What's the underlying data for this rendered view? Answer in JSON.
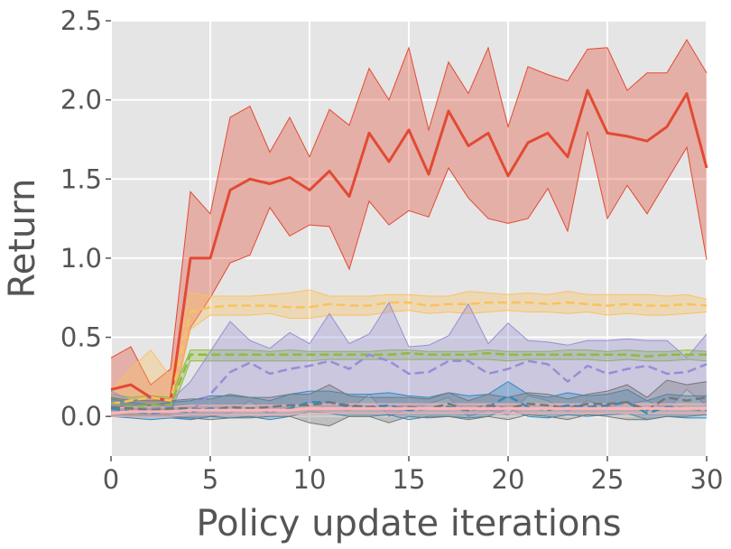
{
  "chart_data": {
    "type": "line",
    "title": "",
    "xlabel": "Policy update iterations",
    "ylabel": "Return",
    "xlim": [
      0,
      30
    ],
    "ylim": [
      -0.25,
      2.5
    ],
    "grid": true,
    "background": "#e5e5e5",
    "x": [
      0,
      1,
      2,
      3,
      4,
      5,
      6,
      7,
      8,
      9,
      10,
      11,
      12,
      13,
      14,
      15,
      16,
      17,
      18,
      19,
      20,
      21,
      22,
      23,
      24,
      25,
      26,
      27,
      28,
      29,
      30
    ],
    "xticks": [
      0,
      5,
      10,
      15,
      20,
      25,
      30
    ],
    "xtick_labels": [
      "0",
      "5",
      "10",
      "15",
      "20",
      "25",
      "30"
    ],
    "yticks": [
      0.0,
      0.5,
      1.0,
      1.5,
      2.0,
      2.5
    ],
    "ytick_labels": [
      "0.0",
      "0.5",
      "1.0",
      "1.5",
      "2.0",
      "2.5"
    ],
    "series": [
      {
        "color": "#e24a33",
        "dash": "solid",
        "width": 3,
        "mean": [
          0.17,
          0.2,
          0.12,
          0.1,
          1.0,
          1.0,
          1.43,
          1.5,
          1.47,
          1.51,
          1.43,
          1.55,
          1.39,
          1.79,
          1.61,
          1.81,
          1.53,
          1.93,
          1.71,
          1.79,
          1.52,
          1.73,
          1.79,
          1.64,
          2.06,
          1.79,
          1.77,
          1.74,
          1.83,
          2.04,
          1.57
        ],
        "upper": [
          0.37,
          0.44,
          0.2,
          0.3,
          1.42,
          1.28,
          1.89,
          1.96,
          1.67,
          1.89,
          1.64,
          1.94,
          1.84,
          2.2,
          2.0,
          2.33,
          1.81,
          2.24,
          2.04,
          2.33,
          1.83,
          2.21,
          2.16,
          2.12,
          2.32,
          2.33,
          2.06,
          2.17,
          2.17,
          2.38,
          2.17
        ],
        "lower": [
          0.0,
          0.0,
          0.0,
          0.0,
          0.56,
          0.75,
          0.97,
          1.02,
          1.32,
          1.14,
          1.21,
          1.2,
          0.93,
          1.36,
          1.21,
          1.3,
          1.26,
          1.57,
          1.38,
          1.25,
          1.22,
          1.25,
          1.44,
          1.17,
          1.8,
          1.25,
          1.46,
          1.28,
          1.49,
          1.7,
          0.99
        ]
      },
      {
        "color": "#fbc15e",
        "dash": "dashed",
        "width": 2.5,
        "mean": [
          0.08,
          0.1,
          0.12,
          0.1,
          0.66,
          0.69,
          0.7,
          0.7,
          0.7,
          0.69,
          0.69,
          0.71,
          0.7,
          0.7,
          0.72,
          0.72,
          0.7,
          0.71,
          0.71,
          0.72,
          0.72,
          0.72,
          0.71,
          0.72,
          0.71,
          0.7,
          0.71,
          0.7,
          0.7,
          0.71,
          0.7
        ],
        "upper": [
          0.16,
          0.3,
          0.42,
          0.25,
          0.78,
          0.76,
          0.76,
          0.76,
          0.77,
          0.78,
          0.8,
          0.76,
          0.76,
          0.76,
          0.77,
          0.77,
          0.76,
          0.76,
          0.79,
          0.78,
          0.77,
          0.78,
          0.77,
          0.79,
          0.77,
          0.77,
          0.77,
          0.77,
          0.76,
          0.77,
          0.74
        ],
        "lower": [
          0.0,
          0.0,
          0.0,
          0.0,
          0.55,
          0.64,
          0.64,
          0.64,
          0.65,
          0.62,
          0.62,
          0.64,
          0.64,
          0.64,
          0.66,
          0.67,
          0.65,
          0.66,
          0.65,
          0.66,
          0.67,
          0.66,
          0.66,
          0.65,
          0.66,
          0.64,
          0.65,
          0.64,
          0.64,
          0.65,
          0.66
        ]
      },
      {
        "color": "#8eba42",
        "dash": "dashed",
        "width": 2.5,
        "mean": [
          0.08,
          0.06,
          0.07,
          0.07,
          0.39,
          0.39,
          0.39,
          0.39,
          0.39,
          0.39,
          0.39,
          0.39,
          0.39,
          0.39,
          0.39,
          0.4,
          0.39,
          0.39,
          0.39,
          0.4,
          0.39,
          0.39,
          0.39,
          0.39,
          0.39,
          0.39,
          0.39,
          0.38,
          0.39,
          0.39,
          0.39
        ],
        "upper": [
          0.14,
          0.12,
          0.13,
          0.12,
          0.42,
          0.42,
          0.42,
          0.42,
          0.41,
          0.42,
          0.41,
          0.41,
          0.41,
          0.41,
          0.42,
          0.42,
          0.41,
          0.41,
          0.41,
          0.42,
          0.41,
          0.41,
          0.41,
          0.42,
          0.42,
          0.41,
          0.42,
          0.41,
          0.41,
          0.42,
          0.41
        ],
        "lower": [
          0.02,
          0.01,
          0.02,
          0.02,
          0.35,
          0.35,
          0.35,
          0.35,
          0.35,
          0.35,
          0.35,
          0.36,
          0.36,
          0.36,
          0.36,
          0.36,
          0.36,
          0.36,
          0.36,
          0.36,
          0.35,
          0.36,
          0.36,
          0.36,
          0.36,
          0.35,
          0.36,
          0.35,
          0.35,
          0.36,
          0.35
        ]
      },
      {
        "color": "#988ed5",
        "dash": "dashed",
        "width": 2.5,
        "mean": [
          0.07,
          0.05,
          0.05,
          0.06,
          0.03,
          0.14,
          0.28,
          0.34,
          0.27,
          0.3,
          0.32,
          0.35,
          0.3,
          0.39,
          0.35,
          0.27,
          0.28,
          0.35,
          0.35,
          0.27,
          0.3,
          0.35,
          0.33,
          0.22,
          0.32,
          0.27,
          0.3,
          0.32,
          0.27,
          0.28,
          0.33
        ],
        "upper": [
          0.16,
          0.1,
          0.12,
          0.1,
          0.22,
          0.41,
          0.6,
          0.48,
          0.43,
          0.53,
          0.46,
          0.65,
          0.46,
          0.52,
          0.72,
          0.44,
          0.45,
          0.51,
          0.71,
          0.46,
          0.59,
          0.48,
          0.47,
          0.45,
          0.48,
          0.48,
          0.49,
          0.48,
          0.48,
          0.37,
          0.52
        ],
        "lower": [
          0.0,
          0.0,
          0.0,
          0.0,
          -0.02,
          0.0,
          0.02,
          0.1,
          0.02,
          0.07,
          0.08,
          0.05,
          0.04,
          0.14,
          0.0,
          0.05,
          0.08,
          0.12,
          0.0,
          0.04,
          0.01,
          0.13,
          0.1,
          0.03,
          0.1,
          0.06,
          0.08,
          0.1,
          0.04,
          0.17,
          0.07
        ]
      },
      {
        "color": "#348abd",
        "dash": "dashed",
        "width": 2.5,
        "mean": [
          0.05,
          0.03,
          0.02,
          0.03,
          0.03,
          0.05,
          0.04,
          0.05,
          0.03,
          0.05,
          0.09,
          0.09,
          0.06,
          0.06,
          0.07,
          0.04,
          0.05,
          0.06,
          0.04,
          0.06,
          0.13,
          0.06,
          0.04,
          0.07,
          0.06,
          0.07,
          0.09,
          0.02,
          0.06,
          0.05,
          0.04
        ],
        "upper": [
          0.11,
          0.09,
          0.07,
          0.09,
          0.1,
          0.13,
          0.13,
          0.12,
          0.1,
          0.14,
          0.16,
          0.16,
          0.14,
          0.14,
          0.15,
          0.13,
          0.12,
          0.15,
          0.13,
          0.14,
          0.22,
          0.14,
          0.12,
          0.15,
          0.13,
          0.14,
          0.17,
          0.1,
          0.14,
          0.13,
          0.13
        ],
        "lower": [
          0.0,
          -0.01,
          -0.02,
          -0.01,
          -0.02,
          0.0,
          -0.01,
          0.0,
          -0.02,
          0.0,
          0.03,
          0.02,
          0.0,
          0.0,
          0.01,
          -0.02,
          0.0,
          0.0,
          -0.01,
          0.0,
          0.05,
          0.0,
          -0.01,
          0.01,
          0.0,
          0.01,
          0.02,
          -0.02,
          0.0,
          -0.01,
          -0.01
        ]
      },
      {
        "color": "#777777",
        "dash": "dashed",
        "width": 2.5,
        "mean": [
          0.06,
          0.05,
          0.04,
          0.05,
          0.05,
          0.04,
          0.06,
          0.05,
          0.06,
          0.07,
          0.07,
          0.09,
          0.07,
          0.06,
          0.05,
          0.06,
          0.05,
          0.08,
          0.04,
          0.07,
          0.05,
          0.08,
          0.07,
          0.05,
          0.08,
          0.08,
          0.09,
          0.04,
          0.12,
          0.1,
          0.12
        ],
        "upper": [
          0.12,
          0.1,
          0.1,
          0.1,
          0.11,
          0.11,
          0.14,
          0.12,
          0.12,
          0.14,
          0.14,
          0.2,
          0.13,
          0.12,
          0.12,
          0.12,
          0.11,
          0.15,
          0.1,
          0.14,
          0.12,
          0.15,
          0.14,
          0.11,
          0.14,
          0.16,
          0.2,
          0.12,
          0.23,
          0.2,
          0.22
        ],
        "lower": [
          0.0,
          0.0,
          0.0,
          0.0,
          -0.01,
          -0.02,
          -0.01,
          -0.01,
          0.0,
          0.0,
          -0.04,
          -0.06,
          0.0,
          0.0,
          -0.04,
          0.0,
          -0.01,
          0.0,
          -0.02,
          0.0,
          -0.02,
          0.01,
          0.0,
          -0.02,
          0.01,
          0.0,
          -0.02,
          -0.02,
          0.0,
          0.0,
          0.01
        ]
      },
      {
        "color": "#ffb5b8",
        "dash": "solid",
        "width": 3,
        "mean": [
          0.02,
          0.03,
          0.03,
          0.03,
          0.04,
          0.04,
          0.04,
          0.04,
          0.04,
          0.04,
          0.05,
          0.05,
          0.05,
          0.05,
          0.05,
          0.05,
          0.05,
          0.05,
          0.05,
          0.05,
          0.05,
          0.05,
          0.05,
          0.05,
          0.05,
          0.05,
          0.05,
          0.05,
          0.05,
          0.05,
          0.05
        ],
        "upper": [
          0.05,
          0.06,
          0.06,
          0.06,
          0.07,
          0.07,
          0.07,
          0.07,
          0.07,
          0.07,
          0.08,
          0.08,
          0.08,
          0.08,
          0.08,
          0.08,
          0.08,
          0.08,
          0.08,
          0.08,
          0.08,
          0.08,
          0.08,
          0.08,
          0.08,
          0.08,
          0.08,
          0.08,
          0.08,
          0.08,
          0.08
        ],
        "lower": [
          0.0,
          0.0,
          0.0,
          0.0,
          0.01,
          0.01,
          0.01,
          0.01,
          0.01,
          0.01,
          0.02,
          0.02,
          0.02,
          0.02,
          0.02,
          0.02,
          0.02,
          0.02,
          0.02,
          0.02,
          0.02,
          0.02,
          0.02,
          0.02,
          0.02,
          0.02,
          0.02,
          0.02,
          0.02,
          0.02,
          0.02
        ]
      }
    ]
  }
}
